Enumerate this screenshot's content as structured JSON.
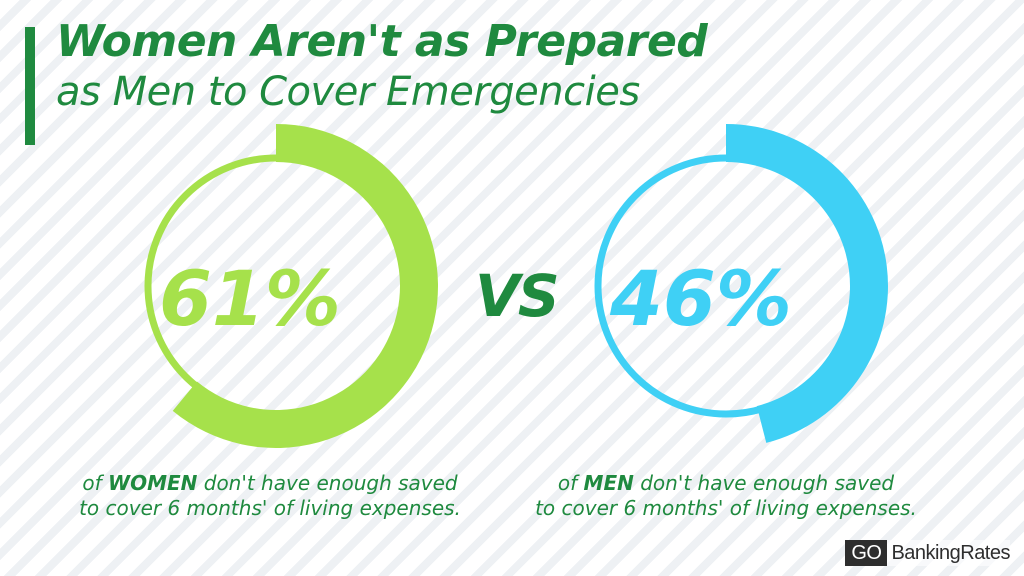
{
  "header": {
    "title_line1": "Women Aren't as Prepared",
    "title_line2": "as Men to Cover Emergencies"
  },
  "comparison": {
    "vs_label": "VS",
    "women": {
      "percent_label": "61%",
      "caption_pre": "of ",
      "caption_bold": "WOMEN",
      "caption_post": " don't have enough saved",
      "caption_line2": "to cover 6 months' of living expenses.",
      "color": "#a6e14b"
    },
    "men": {
      "percent_label": "46%",
      "caption_pre": "of ",
      "caption_bold": "MEN",
      "caption_post": " don't have enough saved",
      "caption_line2": "to cover 6 months' of living expenses.",
      "color": "#3fd0f5"
    }
  },
  "brand": {
    "logo_go": "GO",
    "logo_rest": "BankingRates"
  },
  "colors": {
    "accent": "#1f8a3f",
    "women": "#a6e14b",
    "men": "#3fd0f5"
  },
  "chart_data": [
    {
      "type": "pie",
      "categories": [
        "WOMEN"
      ],
      "values": [
        61
      ]
    },
    {
      "type": "pie",
      "categories": [
        "MEN"
      ],
      "values": [
        46
      ]
    }
  ]
}
